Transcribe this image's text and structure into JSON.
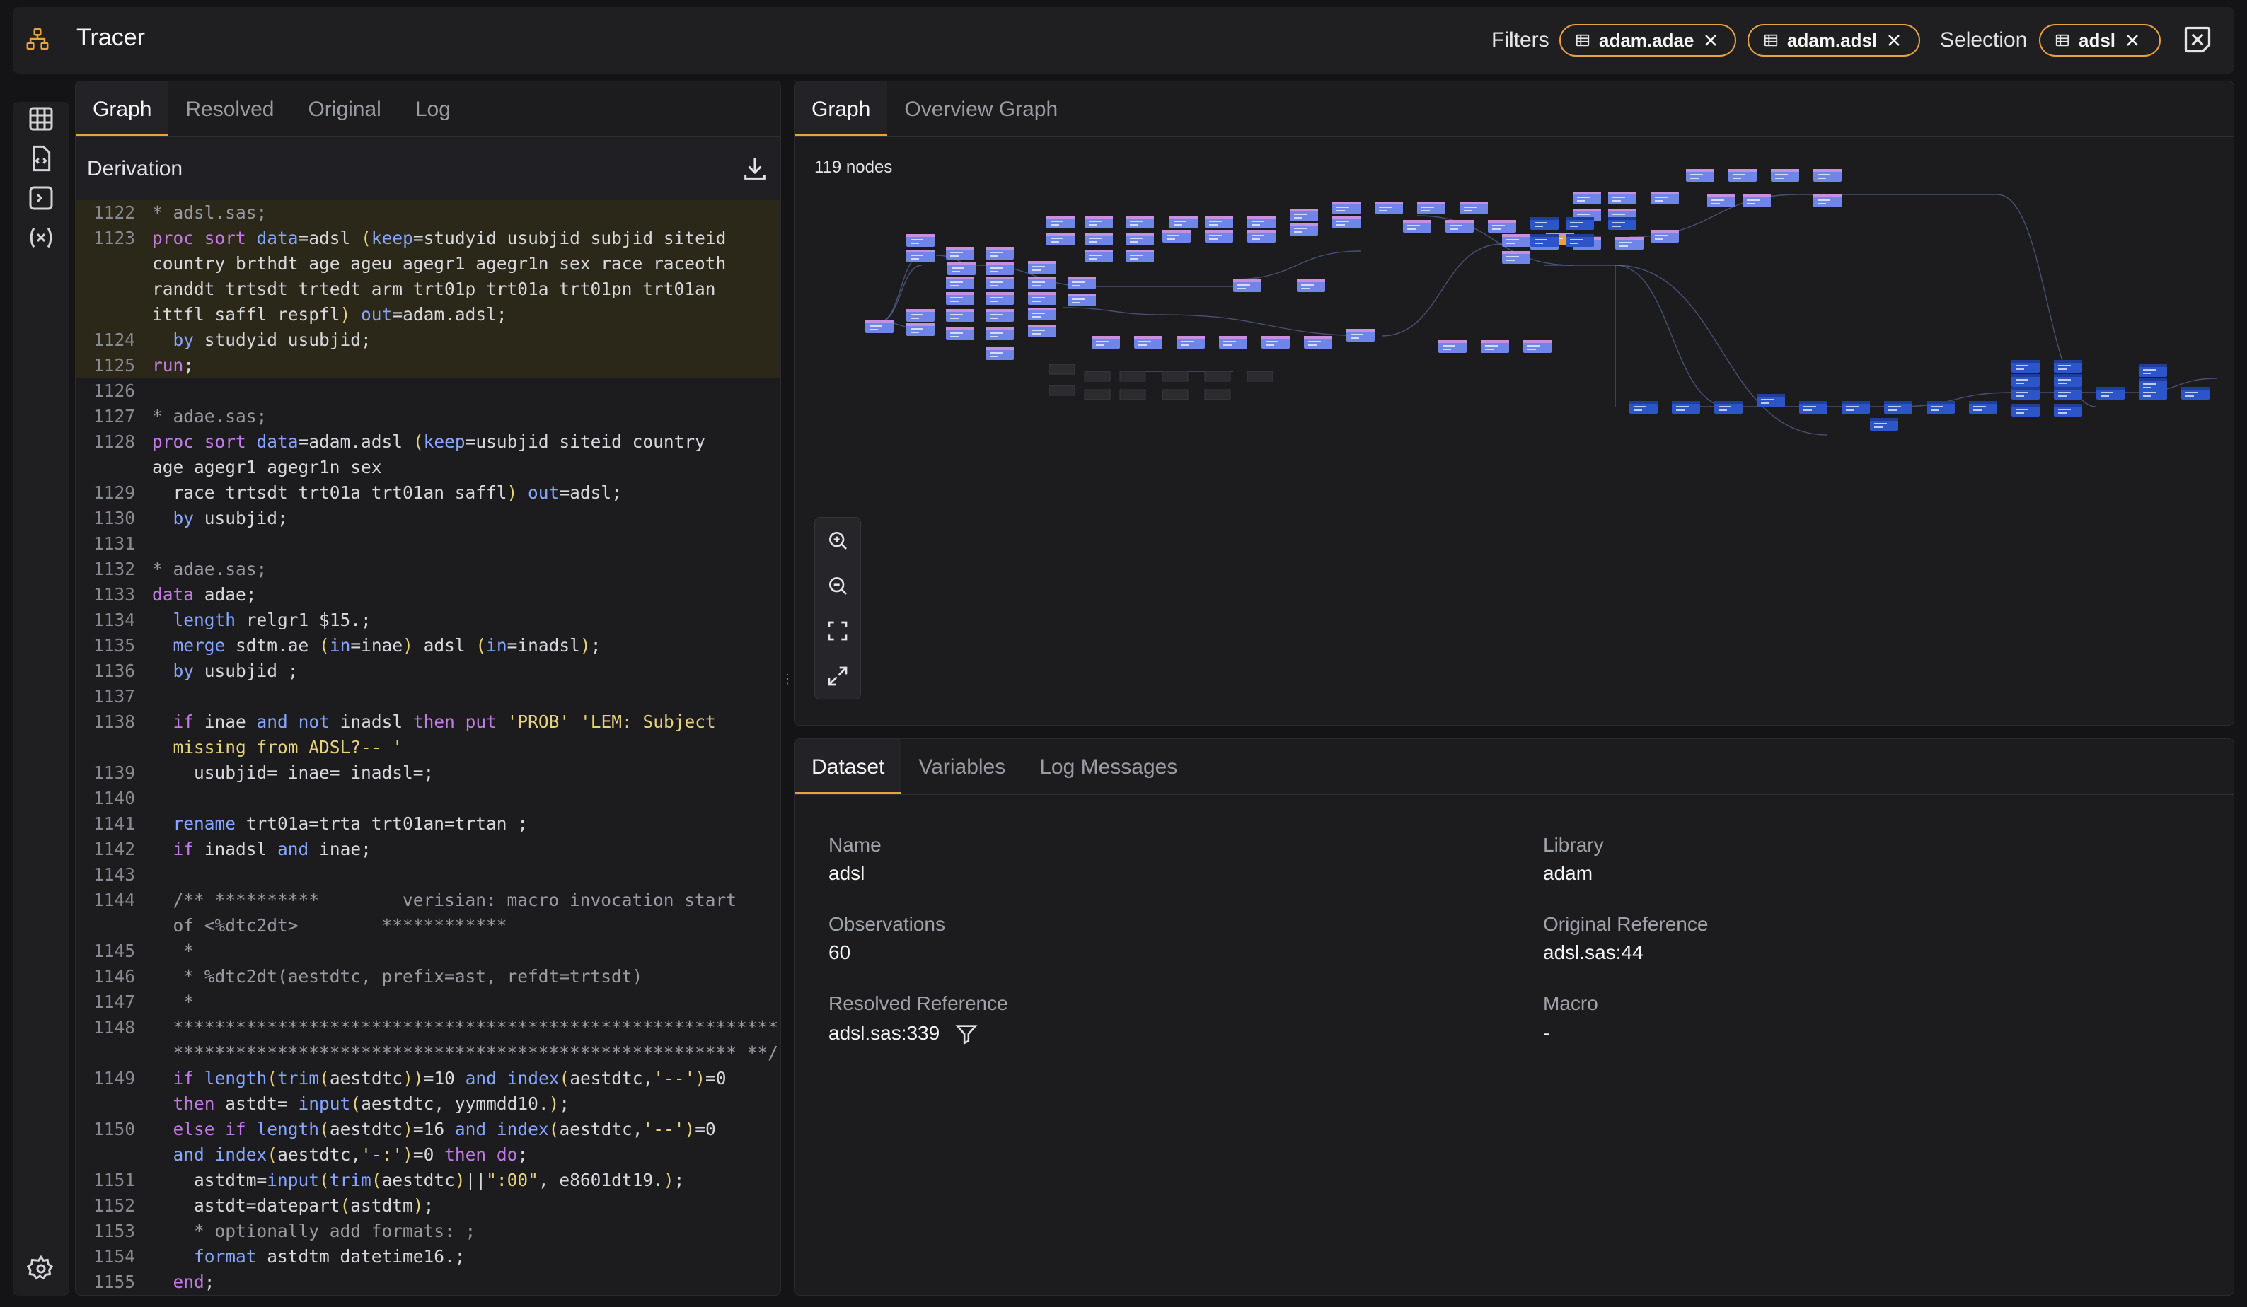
{
  "app": {
    "title": "Tracer"
  },
  "topbar": {
    "filters_label": "Filters",
    "filter_chips": [
      "adam.adae",
      "adam.adsl"
    ],
    "selection_label": "Selection",
    "selection_chip": "adsl"
  },
  "code_panel": {
    "tabs": [
      "Graph",
      "Resolved",
      "Original",
      "Log"
    ],
    "active_tab": "Graph",
    "section_title": "Derivation"
  },
  "graph_panel": {
    "tabs": [
      "Graph",
      "Overview Graph"
    ],
    "active_tab": "Graph",
    "node_count_label": "119 nodes"
  },
  "dataset_panel": {
    "tabs": [
      "Dataset",
      "Variables",
      "Log Messages"
    ],
    "active_tab": "Dataset",
    "fields": {
      "name_label": "Name",
      "name": "adsl",
      "library_label": "Library",
      "library": "adam",
      "observations_label": "Observations",
      "observations": "60",
      "original_reference_label": "Original Reference",
      "original_reference": "adsl.sas:44",
      "resolved_reference_label": "Resolved Reference",
      "resolved_reference": "adsl.sas:339",
      "macro_label": "Macro",
      "macro": "-"
    }
  },
  "colors": {
    "accent": "#e8a33d",
    "node": "#6f86e8",
    "node_selected": "#e8a33d",
    "node_dark": "#2b55c9"
  },
  "code_lines": [
    {
      "ln": "1122",
      "hl": true,
      "html": "<span class='c'>* adsl.sas;</span>"
    },
    {
      "ln": "1123",
      "hl": true,
      "html": "<span class='k'>proc sort</span> <span class='b'>data</span>=adsl <span class='s'>(</span><span class='b'>keep</span>=studyid usubjid subjid siteid"
    },
    {
      "ln": "",
      "hl": true,
      "html": "country brthdt age ageu agegr1 agegr1n sex race raceoth"
    },
    {
      "ln": "",
      "hl": true,
      "html": "randdt trtsdt trtedt arm trt01p trt01a trt01pn trt01an"
    },
    {
      "ln": "",
      "hl": true,
      "html": "ittfl saffl respfl<span class='s'>)</span> <span class='b'>out</span>=adam.adsl;"
    },
    {
      "ln": "1124",
      "hl": true,
      "html": "  <span class='b'>by</span> studyid usubjid;"
    },
    {
      "ln": "1125",
      "hl": true,
      "html": "<span class='k'>run</span>;"
    },
    {
      "ln": "1126",
      "hl": false,
      "html": ""
    },
    {
      "ln": "1127",
      "hl": false,
      "html": "<span class='c'>* adae.sas;</span>"
    },
    {
      "ln": "1128",
      "hl": false,
      "html": "<span class='k'>proc sort</span> <span class='b'>data</span>=adam.adsl <span class='s'>(</span><span class='b'>keep</span>=usubjid siteid country"
    },
    {
      "ln": "",
      "hl": false,
      "html": "age agegr1 agegr1n sex"
    },
    {
      "ln": "1129",
      "hl": false,
      "html": "  race trtsdt trt01a trt01an saffl<span class='s'>)</span> <span class='b'>out</span>=adsl;"
    },
    {
      "ln": "1130",
      "hl": false,
      "html": "  <span class='b'>by</span> usubjid;"
    },
    {
      "ln": "1131",
      "hl": false,
      "html": ""
    },
    {
      "ln": "1132",
      "hl": false,
      "html": "<span class='c'>* adae.sas;</span>"
    },
    {
      "ln": "1133",
      "hl": false,
      "html": "<span class='k'>data</span> adae;"
    },
    {
      "ln": "1134",
      "hl": false,
      "html": "  <span class='b'>length</span> relgr1 $15.;"
    },
    {
      "ln": "1135",
      "hl": false,
      "html": "  <span class='b'>merge</span> sdtm.ae <span class='s'>(</span><span class='b'>in</span>=inae<span class='s'>)</span> adsl <span class='s'>(</span><span class='b'>in</span>=inadsl<span class='s'>)</span>;"
    },
    {
      "ln": "1136",
      "hl": false,
      "html": "  <span class='b'>by</span> usubjid ;"
    },
    {
      "ln": "1137",
      "hl": false,
      "html": ""
    },
    {
      "ln": "1138",
      "hl": false,
      "html": "  <span class='k'>if</span> inae <span class='b'>and</span> <span class='b'>not</span> inadsl <span class='k'>then</span> <span class='k'>put</span> <span class='s'>'PROB'</span> <span class='s'>'LEM: Subject</span>"
    },
    {
      "ln": "",
      "hl": false,
      "html": "  <span class='s'>missing from ADSL?-- '</span>"
    },
    {
      "ln": "1139",
      "hl": false,
      "html": "    usubjid= inae= inadsl=;"
    },
    {
      "ln": "1140",
      "hl": false,
      "html": ""
    },
    {
      "ln": "1141",
      "hl": false,
      "html": "  <span class='b'>rename</span> trt01a=trta trt01an=trtan ;"
    },
    {
      "ln": "1142",
      "hl": false,
      "html": "  <span class='k'>if</span> inadsl <span class='b'>and</span> inae;"
    },
    {
      "ln": "1143",
      "hl": false,
      "html": ""
    },
    {
      "ln": "1144",
      "hl": false,
      "html": "  <span class='c'>/** **********        verisian: macro invocation start</span>"
    },
    {
      "ln": "",
      "hl": false,
      "html": "  <span class='c'>of &lt;%dtc2dt&gt;        ************</span>"
    },
    {
      "ln": "1145",
      "hl": false,
      "html": "   <span class='c'>*</span>"
    },
    {
      "ln": "1146",
      "hl": false,
      "html": "   <span class='c'>* %dtc2dt(aestdtc, prefix=ast, refdt=trtsdt)</span>"
    },
    {
      "ln": "1147",
      "hl": false,
      "html": "   <span class='c'>*</span>"
    },
    {
      "ln": "1148",
      "hl": false,
      "html": "  <span class='c'>**********************************************************</span>"
    },
    {
      "ln": "",
      "hl": false,
      "html": "  <span class='c'>****************************************************** **/</span>"
    },
    {
      "ln": "1149",
      "hl": false,
      "html": "  <span class='k'>if</span> <span class='b'>length</span><span class='s'>(</span><span class='b'>trim</span><span class='s'>(</span>aestdtc<span class='s'>))</span>=10 <span class='b'>and</span> <span class='b'>index</span><span class='s'>(</span>aestdtc,<span class='s'>'--'</span><span class='s'>)</span>=0"
    },
    {
      "ln": "",
      "hl": false,
      "html": "  <span class='k'>then</span> astdt= <span class='b'>input</span><span class='s'>(</span>aestdtc, yymmdd10.<span class='s'>)</span>;"
    },
    {
      "ln": "1150",
      "hl": false,
      "html": "  <span class='k'>else if</span> <span class='b'>length</span><span class='s'>(</span>aestdtc<span class='s'>)</span>=16 <span class='b'>and</span> <span class='b'>index</span><span class='s'>(</span>aestdtc,<span class='s'>'--'</span><span class='s'>)</span>=0"
    },
    {
      "ln": "",
      "hl": false,
      "html": "  <span class='b'>and</span> <span class='b'>index</span><span class='s'>(</span>aestdtc,<span class='s'>'-:'</span><span class='s'>)</span>=0 <span class='k'>then do</span>;"
    },
    {
      "ln": "1151",
      "hl": false,
      "html": "    astdtm=<span class='b'>input</span><span class='s'>(</span><span class='b'>trim</span><span class='s'>(</span>aestdtc<span class='s'>)</span>||<span class='s'>\":00\"</span>, e8601dt19.<span class='s'>)</span>;"
    },
    {
      "ln": "1152",
      "hl": false,
      "html": "    astdt=datepart<span class='s'>(</span>astdtm<span class='s'>)</span>;"
    },
    {
      "ln": "1153",
      "hl": false,
      "html": "    <span class='c'>* optionally add formats: ;</span>"
    },
    {
      "ln": "1154",
      "hl": false,
      "html": "    <span class='b'>format</span> astdtm datetime16.;"
    },
    {
      "ln": "1155",
      "hl": false,
      "html": "  <span class='k'>end</span>;"
    }
  ]
}
